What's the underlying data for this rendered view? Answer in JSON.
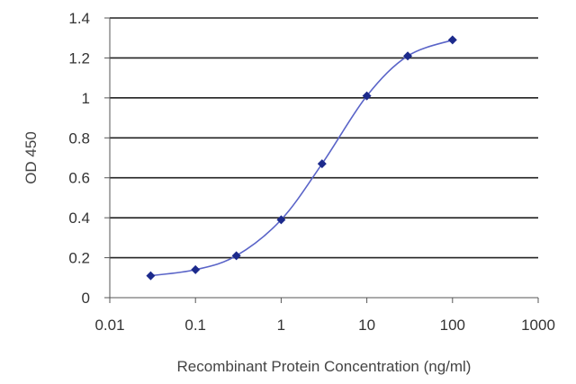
{
  "chart_data": {
    "type": "line",
    "title": "",
    "xlabel": "Recombinant Protein Concentration (ng/ml)",
    "ylabel": "OD 450",
    "x_scale": "log",
    "xlim": [
      0.01,
      1000
    ],
    "ylim": [
      0,
      1.4
    ],
    "x_ticks": [
      "0.01",
      "0.1",
      "1",
      "10",
      "100",
      "1000"
    ],
    "y_ticks": [
      "0",
      "0.2",
      "0.4",
      "0.6",
      "0.8",
      "1",
      "1.2",
      "1.4"
    ],
    "grid": "horizontal",
    "series": [
      {
        "x": [
          0.03,
          0.1,
          0.3,
          1,
          3,
          10,
          30,
          100
        ],
        "y": [
          0.11,
          0.14,
          0.21,
          0.39,
          0.67,
          1.01,
          1.21,
          1.29
        ]
      }
    ],
    "colors": {
      "line": "#5a64c8",
      "marker": "#1c2a8c",
      "grid": "#222222",
      "axis": "#555555",
      "text": "#333333"
    }
  }
}
